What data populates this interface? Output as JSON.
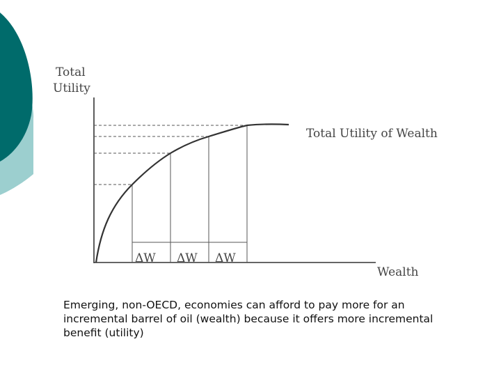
{
  "slide": {
    "colors": {
      "deco_dark": "#006b6b",
      "deco_light": "#9ccfcf",
      "curve": "#333333",
      "guides": "#555555"
    }
  },
  "figure": {
    "y_axis_label_line1": "Total",
    "y_axis_label_line2": "Utility",
    "x_axis_label": "Wealth",
    "curve_label": "Total Utility of Wealth",
    "delta_labels": [
      "ΔW",
      "ΔW",
      "ΔW"
    ]
  },
  "caption": {
    "text": "Emerging, non-OECD, economies can afford to pay more for an incremental barrel of oil (wealth) because it offers more incremental benefit (utility)"
  }
}
